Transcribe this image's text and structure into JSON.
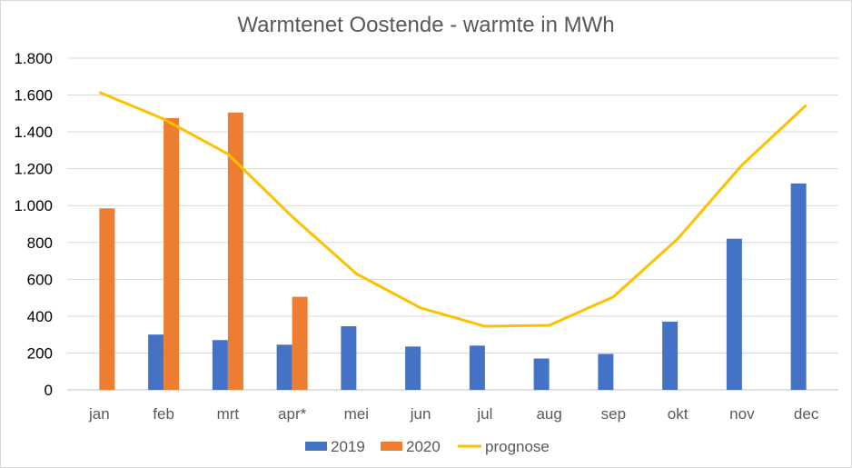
{
  "chart_data": {
    "type": "bar",
    "title": "Warmtenet Oostende - warmte in MWh",
    "categories": [
      "jan",
      "feb",
      "mrt",
      "apr*",
      "mei",
      "jun",
      "jul",
      "aug",
      "sep",
      "okt",
      "nov",
      "dec"
    ],
    "series": [
      {
        "name": "2019",
        "type": "bar",
        "color": "#4472c4",
        "values": [
          null,
          300,
          270,
          245,
          345,
          235,
          240,
          170,
          195,
          370,
          820,
          1120
        ]
      },
      {
        "name": "2020",
        "type": "bar",
        "color": "#ed7d31",
        "values": [
          985,
          1475,
          1505,
          505,
          null,
          null,
          null,
          null,
          null,
          null,
          null,
          null
        ]
      },
      {
        "name": "prognose",
        "type": "line",
        "color": "#ffc000",
        "values": [
          1615,
          1470,
          1280,
          940,
          630,
          445,
          345,
          350,
          505,
          820,
          1220,
          1545
        ]
      }
    ],
    "ylim": [
      0,
      1800
    ],
    "yticks": [
      0,
      200,
      400,
      600,
      800,
      1000,
      1200,
      1400,
      1600,
      1800
    ],
    "ytick_labels": [
      "0",
      "200",
      "400",
      "600",
      "800",
      "1.000",
      "1.200",
      "1.400",
      "1.600",
      "1.800"
    ],
    "xlabel": "",
    "ylabel": "",
    "grid": true,
    "legend": "bottom"
  }
}
